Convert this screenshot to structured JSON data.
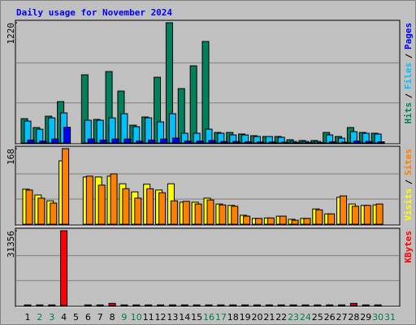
{
  "chart_data": {
    "type": "bar",
    "title": "Daily usage for November 2024",
    "categories": [
      "1",
      "2",
      "3",
      "4",
      "5",
      "6",
      "7",
      "8",
      "9",
      "10",
      "11",
      "12",
      "13",
      "14",
      "15",
      "16",
      "17",
      "18",
      "19",
      "20",
      "21",
      "22",
      "23",
      "24",
      "25",
      "26",
      "27",
      "28",
      "29",
      "30",
      "31"
    ],
    "category_colors": [
      "#000000",
      "#008040",
      "#008040",
      "#000000",
      "#000000",
      "#000000",
      "#000000",
      "#000000",
      "#008040",
      "#008040",
      "#000000",
      "#000000",
      "#000000",
      "#000000",
      "#000000",
      "#008040",
      "#008040",
      "#000000",
      "#000000",
      "#000000",
      "#000000",
      "#000000",
      "#008040",
      "#008040",
      "#000000",
      "#000000",
      "#000000",
      "#000000",
      "#000000",
      "#008040",
      "#008040"
    ],
    "panels": [
      {
        "ylim": [
          0,
          1220
        ],
        "yticks": [
          1220
        ],
        "series": [
          {
            "name": "Hits",
            "color": "#00805c",
            "values": [
              247,
              157,
              272,
              420,
              0,
              692,
              239,
              725,
              527,
              181,
              264,
              667,
              1220,
              552,
              783,
              1030,
              107,
              107,
              91,
              74,
              66,
              66,
              33,
              25,
              25,
              107,
              66,
              157,
              107,
              99,
              0
            ]
          },
          {
            "name": "Files",
            "color": "#00c0ff",
            "values": [
              222,
              140,
              255,
              305,
              0,
              231,
              231,
              255,
              297,
              165,
              255,
              214,
              297,
              99,
              99,
              140,
              99,
              82,
              82,
              66,
              66,
              58,
              16,
              16,
              16,
              82,
              49,
              115,
              99,
              91,
              0
            ]
          },
          {
            "name": "Pages",
            "color": "#0000ff",
            "values": [
              30,
              20,
              40,
              160,
              0,
              40,
              30,
              40,
              40,
              20,
              30,
              40,
              50,
              20,
              20,
              25,
              15,
              15,
              12,
              10,
              10,
              8,
              5,
              5,
              5,
              12,
              8,
              20,
              15,
              12,
              0
            ]
          }
        ]
      },
      {
        "ylim": [
          0,
          168
        ],
        "yticks": [
          168
        ],
        "series": [
          {
            "name": "Visits",
            "color": "#ffff00",
            "values": [
              78,
              65,
              52,
              141,
              0,
              105,
              105,
              107,
              90,
              72,
              89,
              76,
              90,
              49,
              49,
              58,
              45,
              42,
              20,
              13,
              14,
              18,
              11,
              13,
              34,
              23,
              60,
              45,
              42,
              43,
              0
            ]
          },
          {
            "name": "Sites",
            "color": "#ff8000",
            "values": [
              76,
              58,
              47,
              168,
              0,
              107,
              87,
              112,
              79,
              58,
              79,
              70,
              52,
              51,
              45,
              54,
              43,
              40,
              18,
              13,
              14,
              18,
              9,
              13,
              32,
              23,
              63,
              40,
              42,
              45,
              0
            ]
          }
        ]
      },
      {
        "ylim": [
          0,
          31356
        ],
        "yticks": [
          31356
        ],
        "series": [
          {
            "name": "KBytes",
            "color": "#ff0000",
            "values": [
              250,
              250,
              250,
              31356,
              0,
              250,
              250,
              900,
              250,
              250,
              250,
              250,
              250,
              250,
              250,
              250,
              250,
              250,
              250,
              250,
              250,
              250,
              250,
              250,
              250,
              250,
              250,
              900,
              250,
              250,
              0
            ]
          }
        ]
      }
    ]
  }
}
